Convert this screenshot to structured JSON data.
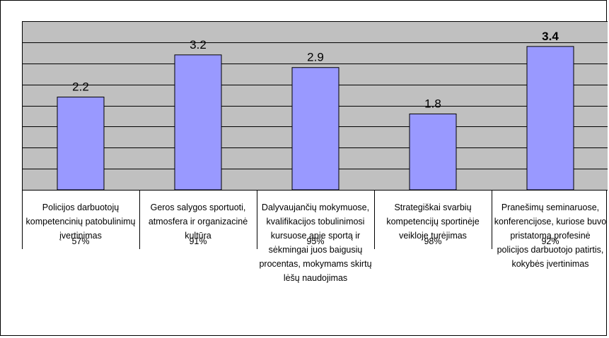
{
  "chart_data": {
    "type": "bar",
    "categories": [
      "Policijos darbuotojų kompetencinių patobulinimų įvertinimas",
      "Geros salygos sportuoti, atmosfera ir organizacinė kultūra",
      "Dalyvaujančių mokymuose, kvalifikacijos tobulinimosi kursuose apie sportą ir sėkmingai juos baigusių procentas, mokymams skirtų lėšų naudojimas",
      "Strategiškai svarbių kompetencijų sportinėje veikloje turėjimas",
      "Pranešimų seminaruose, konferencijose, kuriose buvo pristatoma profesinė policijos darbuotojo patirtis, kokybės įvertinimas"
    ],
    "values": [
      2.2,
      3.2,
      2.9,
      1.8,
      3.4
    ],
    "value_labels": [
      "2.2",
      "3.2",
      "2.9",
      "1.8",
      "3.4"
    ],
    "percentages": [
      "57%",
      "91%",
      "95%",
      "98%",
      "92%"
    ],
    "bold_value_index": 4,
    "ylim": [
      0,
      4
    ],
    "grid": true,
    "title": "",
    "xlabel": "",
    "ylabel": "",
    "colors": {
      "bar_fill": "#9999ff",
      "bar_stroke": "#000000",
      "plot_background": "#c0c0c0",
      "gridline": "#000000"
    }
  }
}
